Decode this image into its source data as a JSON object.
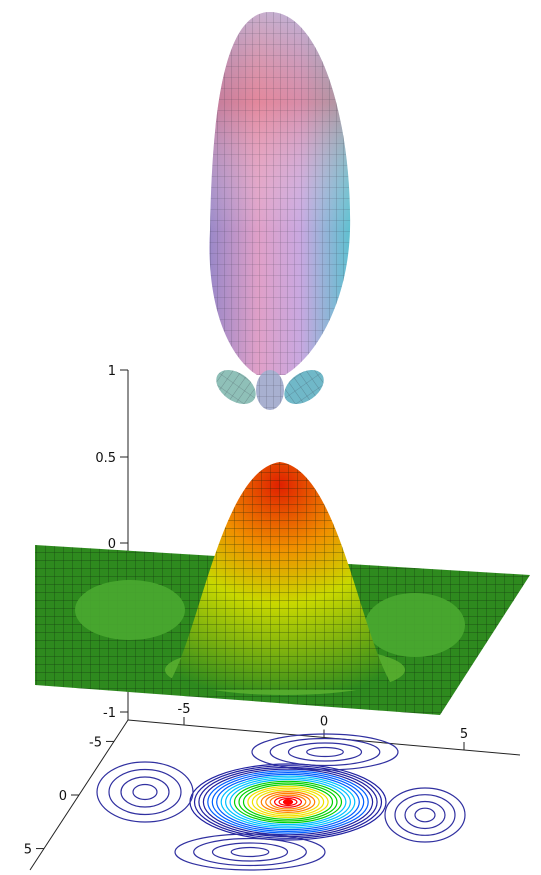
{
  "chart_data": [
    {
      "type": "surface",
      "description_function": "lobe",
      "colors": {
        "top": "#c8a0d8",
        "mid": "#d890b8",
        "side": "#70c8d8"
      }
    },
    {
      "type": "surface",
      "z_ticks": [
        {
          "value": 1,
          "label": "1"
        },
        {
          "value": 0.5,
          "label": "0.5"
        },
        {
          "value": 0,
          "label": "0"
        },
        {
          "value": -1,
          "label": "-1"
        }
      ],
      "x_ticks": [
        {
          "value": -5,
          "label": "-5"
        },
        {
          "value": 0,
          "label": "0"
        },
        {
          "value": 5,
          "label": "5"
        }
      ],
      "y_ticks": [
        {
          "value": -5,
          "label": "-5"
        },
        {
          "value": 0,
          "label": "0"
        },
        {
          "value": 5,
          "label": "5"
        }
      ],
      "zlim": [
        -1,
        1
      ],
      "xlim": [
        -7,
        7
      ],
      "ylim": [
        -7,
        7
      ],
      "colors": {
        "low": "#1f7a1f",
        "mid": "#c8d800",
        "high": "#e02000"
      }
    },
    {
      "type": "contour",
      "levels_colors": [
        "#2020a0",
        "#0060ff",
        "#00c0ff",
        "#00d000",
        "#f0e000",
        "#ff8000",
        "#ff0000"
      ]
    }
  ]
}
